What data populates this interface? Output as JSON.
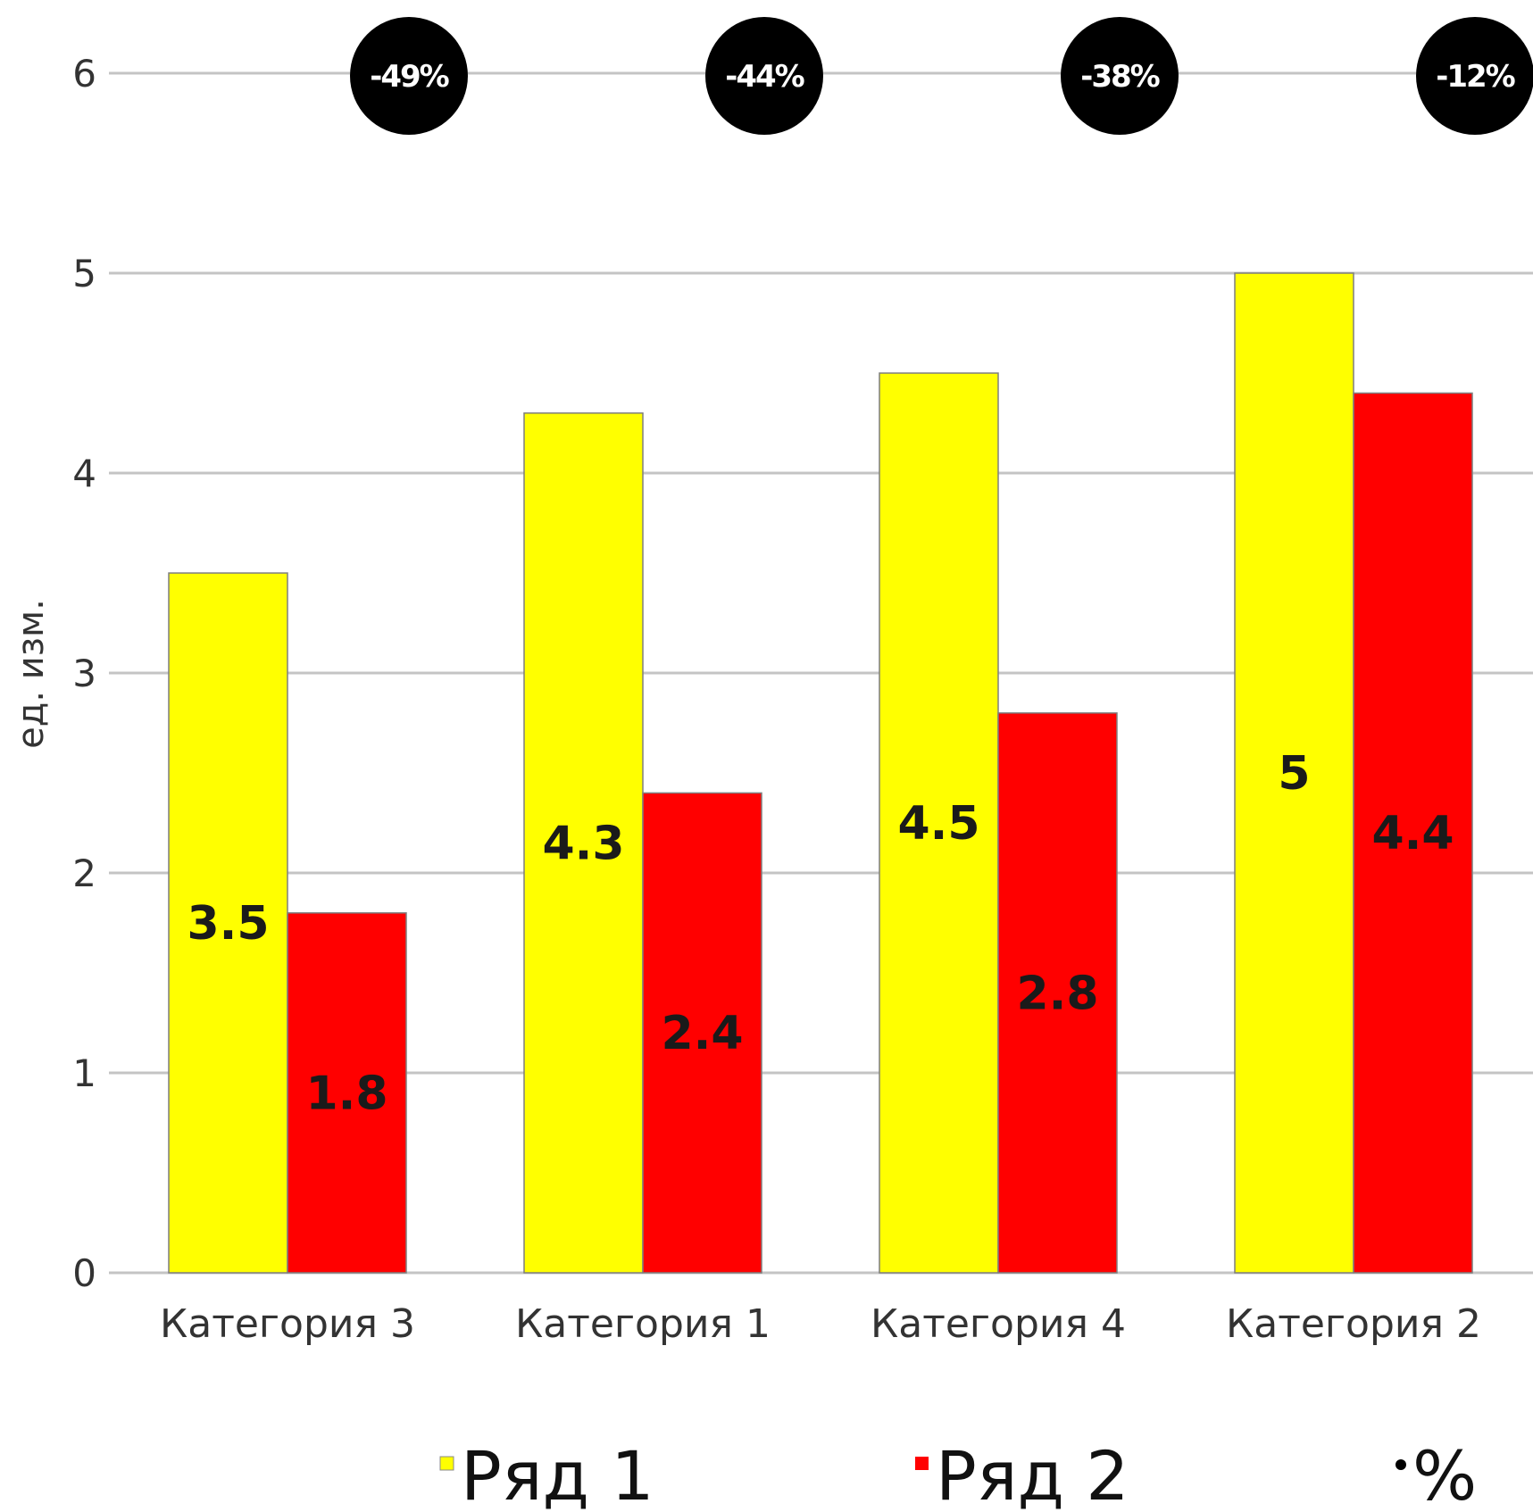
{
  "chart_data": {
    "type": "bar",
    "title": "",
    "xlabel": "",
    "ylabel": "ед. изм.",
    "ylim": [
      0,
      6
    ],
    "yticks": [
      0,
      1,
      2,
      3,
      4,
      5,
      6
    ],
    "grid": true,
    "categories": [
      "Категория 3",
      "Категория 1",
      "Категория 4",
      "Категория 2"
    ],
    "series": [
      {
        "name": "Ряд 1",
        "color": "#ffff00",
        "values": [
          3.5,
          4.3,
          4.5,
          5
        ],
        "labels": [
          "3.5",
          "4.3",
          "4.5",
          "5"
        ]
      },
      {
        "name": "Ряд 2",
        "color": "#ff0000",
        "values": [
          1.8,
          2.4,
          2.8,
          4.4
        ],
        "labels": [
          "1.8",
          "2.4",
          "2.8",
          "4.4"
        ]
      }
    ],
    "percent_series": {
      "name": "%",
      "color": "#000000",
      "labels": [
        "-49%",
        "-44%",
        "-38%",
        "-12%"
      ]
    },
    "legend_position": "bottom"
  }
}
